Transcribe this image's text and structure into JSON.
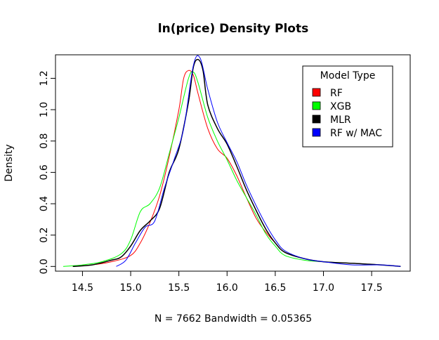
{
  "chart_data": {
    "type": "line",
    "title": "ln(price) Density Plots",
    "xlabel": "N = 7662   Bandwidth = 0.05365",
    "ylabel": "Density",
    "xlim": [
      14.22,
      17.9
    ],
    "ylim": [
      -0.03,
      1.35
    ],
    "x_ticks": [
      14.5,
      15.0,
      15.5,
      16.0,
      16.5,
      17.0,
      17.5
    ],
    "x_tick_labels": [
      "14.5",
      "15.0",
      "15.5",
      "16.0",
      "16.5",
      "17.0",
      "17.5"
    ],
    "y_ticks": [
      0.0,
      0.2,
      0.4,
      0.6,
      0.8,
      1.0,
      1.2
    ],
    "y_tick_labels": [
      "0.0",
      "0.2",
      "0.4",
      "0.6",
      "0.8",
      "1.0",
      "1.2"
    ],
    "grid": false,
    "legend": {
      "title": "Model Type",
      "placement": "top-right",
      "entries": [
        "RF",
        "XGB",
        "MLR",
        "RF w/ MAC"
      ]
    },
    "series": [
      {
        "name": "RF",
        "color": "#ff0000",
        "points": [
          [
            14.4,
            0.0
          ],
          [
            14.6,
            0.01
          ],
          [
            14.8,
            0.03
          ],
          [
            15.0,
            0.07
          ],
          [
            15.1,
            0.15
          ],
          [
            15.2,
            0.28
          ],
          [
            15.3,
            0.45
          ],
          [
            15.4,
            0.7
          ],
          [
            15.5,
            1.0
          ],
          [
            15.55,
            1.2
          ],
          [
            15.6,
            1.25
          ],
          [
            15.65,
            1.22
          ],
          [
            15.7,
            1.1
          ],
          [
            15.8,
            0.88
          ],
          [
            15.9,
            0.75
          ],
          [
            16.0,
            0.69
          ],
          [
            16.1,
            0.58
          ],
          [
            16.2,
            0.44
          ],
          [
            16.3,
            0.31
          ],
          [
            16.4,
            0.22
          ],
          [
            16.5,
            0.15
          ],
          [
            16.6,
            0.09
          ],
          [
            16.8,
            0.05
          ],
          [
            17.0,
            0.03
          ],
          [
            17.3,
            0.02
          ],
          [
            17.6,
            0.01
          ],
          [
            17.8,
            0.0
          ]
        ]
      },
      {
        "name": "XGB",
        "color": "#00ff00",
        "points": [
          [
            14.3,
            0.0
          ],
          [
            14.5,
            0.01
          ],
          [
            14.7,
            0.03
          ],
          [
            14.9,
            0.08
          ],
          [
            15.0,
            0.17
          ],
          [
            15.1,
            0.35
          ],
          [
            15.2,
            0.4
          ],
          [
            15.3,
            0.5
          ],
          [
            15.4,
            0.72
          ],
          [
            15.5,
            0.95
          ],
          [
            15.6,
            1.2
          ],
          [
            15.65,
            1.24
          ],
          [
            15.7,
            1.17
          ],
          [
            15.8,
            0.95
          ],
          [
            15.9,
            0.8
          ],
          [
            16.0,
            0.68
          ],
          [
            16.1,
            0.55
          ],
          [
            16.2,
            0.44
          ],
          [
            16.3,
            0.33
          ],
          [
            16.4,
            0.21
          ],
          [
            16.5,
            0.13
          ],
          [
            16.6,
            0.07
          ],
          [
            16.8,
            0.04
          ],
          [
            17.0,
            0.03
          ],
          [
            17.3,
            0.02
          ],
          [
            17.6,
            0.01
          ],
          [
            17.8,
            0.0
          ]
        ]
      },
      {
        "name": "MLR",
        "color": "#000000",
        "points": [
          [
            14.4,
            0.0
          ],
          [
            14.6,
            0.01
          ],
          [
            14.8,
            0.04
          ],
          [
            14.9,
            0.06
          ],
          [
            15.0,
            0.13
          ],
          [
            15.1,
            0.23
          ],
          [
            15.2,
            0.29
          ],
          [
            15.3,
            0.37
          ],
          [
            15.4,
            0.6
          ],
          [
            15.5,
            0.75
          ],
          [
            15.6,
            1.05
          ],
          [
            15.65,
            1.27
          ],
          [
            15.7,
            1.32
          ],
          [
            15.75,
            1.25
          ],
          [
            15.8,
            1.03
          ],
          [
            15.9,
            0.88
          ],
          [
            16.0,
            0.78
          ],
          [
            16.1,
            0.64
          ],
          [
            16.2,
            0.49
          ],
          [
            16.3,
            0.36
          ],
          [
            16.4,
            0.24
          ],
          [
            16.5,
            0.15
          ],
          [
            16.6,
            0.09
          ],
          [
            16.8,
            0.05
          ],
          [
            17.0,
            0.03
          ],
          [
            17.3,
            0.02
          ],
          [
            17.6,
            0.01
          ],
          [
            17.8,
            0.0
          ]
        ]
      },
      {
        "name": "RF w/ MAC",
        "color": "#0000ff",
        "points": [
          [
            14.85,
            0.0
          ],
          [
            14.95,
            0.04
          ],
          [
            15.05,
            0.15
          ],
          [
            15.15,
            0.25
          ],
          [
            15.25,
            0.29
          ],
          [
            15.35,
            0.5
          ],
          [
            15.45,
            0.68
          ],
          [
            15.55,
            0.88
          ],
          [
            15.65,
            1.28
          ],
          [
            15.72,
            1.33
          ],
          [
            15.8,
            1.13
          ],
          [
            15.9,
            0.92
          ],
          [
            16.0,
            0.79
          ],
          [
            16.1,
            0.67
          ],
          [
            16.2,
            0.52
          ],
          [
            16.3,
            0.39
          ],
          [
            16.4,
            0.27
          ],
          [
            16.5,
            0.17
          ],
          [
            16.6,
            0.1
          ],
          [
            16.8,
            0.05
          ],
          [
            17.0,
            0.03
          ],
          [
            17.3,
            0.01
          ],
          [
            17.6,
            0.01
          ],
          [
            17.8,
            0.0
          ]
        ]
      }
    ]
  }
}
